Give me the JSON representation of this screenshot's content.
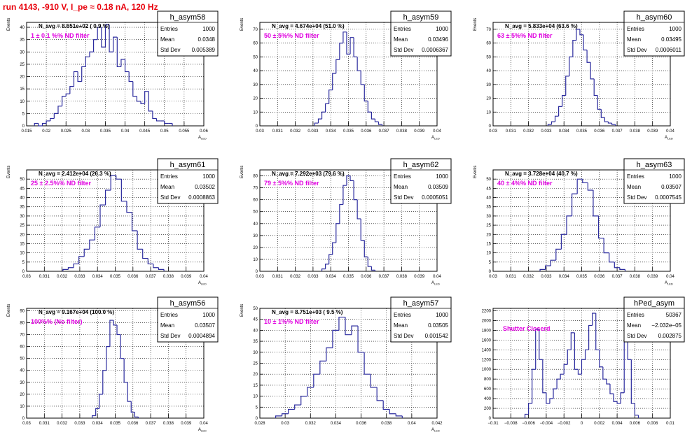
{
  "page_title": "run 4143,  -910 V, I_pe ≈ 0.18 nA, 120 Hz",
  "stats_labels": {
    "entries": "Entries",
    "mean": "Mean",
    "std": "Std Dev"
  },
  "colors": {
    "hist": "#2b2b9e",
    "annotation": "#e000e0",
    "title": "#e8000b"
  },
  "chart_data": [
    {
      "type": "histogram",
      "name": "h_asym58",
      "xlabel": "A_LED",
      "ylabel": "Events",
      "nav": "N_avg = 8.651e+02 ( 0.9 %)",
      "filter": "1 ± 0.1 %% ND filter",
      "entries": "1000",
      "mean": "0.0348",
      "std": "0.005389",
      "xlim": [
        0.015,
        0.06
      ],
      "ylim": [
        0,
        42
      ],
      "xticks": [
        "0.015",
        "0.02",
        "0.025",
        "0.03",
        "0.035",
        "0.04",
        "0.045",
        "0.05",
        "0.055",
        "0.06"
      ],
      "yticks": [
        0,
        5,
        10,
        15,
        20,
        25,
        30,
        35,
        40
      ],
      "x": [
        0.0175,
        0.0185,
        0.0195,
        0.0205,
        0.0215,
        0.0225,
        0.0235,
        0.0245,
        0.0255,
        0.0265,
        0.0275,
        0.0285,
        0.0295,
        0.0305,
        0.0315,
        0.0325,
        0.0335,
        0.0345,
        0.0355,
        0.0365,
        0.0375,
        0.0385,
        0.0395,
        0.0405,
        0.0415,
        0.0425,
        0.0435,
        0.0445,
        0.0455,
        0.0465,
        0.0475,
        0.0485,
        0.0495,
        0.0505,
        0.0515
      ],
      "values": [
        1,
        0,
        1,
        2,
        3,
        5,
        8,
        12,
        13,
        16,
        22,
        18,
        24,
        28,
        30,
        35,
        40,
        32,
        41,
        30,
        36,
        24,
        27,
        22,
        18,
        12,
        10,
        9,
        14,
        6,
        3,
        2,
        2,
        1,
        1
      ]
    },
    {
      "type": "histogram",
      "name": "h_asym59",
      "xlabel": "A_LED",
      "ylabel": "Events",
      "nav": "N_avg = 4.674e+04 (51.0 %)",
      "filter": "50 ± 5%% ND filter",
      "entries": "1000",
      "mean": "0.03496",
      "std": "0.0006367",
      "xlim": [
        0.03,
        0.04
      ],
      "ylim": [
        0,
        75
      ],
      "xticks": [
        "0.03",
        "0.031",
        "0.032",
        "0.033",
        "0.034",
        "0.035",
        "0.036",
        "0.037",
        "0.038",
        "0.039",
        "0.04"
      ],
      "yticks": [
        0,
        10,
        20,
        30,
        40,
        50,
        60,
        70
      ],
      "x": [
        0.0332,
        0.0334,
        0.0336,
        0.0338,
        0.034,
        0.0342,
        0.0344,
        0.0346,
        0.0348,
        0.035,
        0.0352,
        0.0354,
        0.0356,
        0.0358,
        0.036,
        0.0362,
        0.0364,
        0.0366,
        0.0368
      ],
      "values": [
        2,
        5,
        10,
        16,
        26,
        38,
        48,
        60,
        68,
        52,
        64,
        50,
        40,
        30,
        18,
        10,
        5,
        3,
        1
      ]
    },
    {
      "type": "histogram",
      "name": "h_asym60",
      "xlabel": "A_LED",
      "ylabel": "Events",
      "nav": "N_avg = 5.833e+04 (63.6 %)",
      "filter": "63 ± 5%% ND filter",
      "entries": "1000",
      "mean": "0.03495",
      "std": "0.0006011",
      "xlim": [
        0.03,
        0.04
      ],
      "ylim": [
        0,
        75
      ],
      "xticks": [
        "0.03",
        "0.031",
        "0.032",
        "0.033",
        "0.034",
        "0.035",
        "0.036",
        "0.037",
        "0.038",
        "0.039",
        "0.04"
      ],
      "yticks": [
        0,
        10,
        20,
        30,
        40,
        50,
        60,
        70
      ],
      "x": [
        0.0332,
        0.0334,
        0.0336,
        0.0338,
        0.034,
        0.0342,
        0.0344,
        0.0346,
        0.0348,
        0.035,
        0.0352,
        0.0354,
        0.0356,
        0.0358,
        0.036,
        0.0362,
        0.0364,
        0.0366,
        0.0368
      ],
      "values": [
        1,
        3,
        7,
        14,
        22,
        36,
        50,
        62,
        70,
        66,
        55,
        46,
        34,
        22,
        12,
        6,
        3,
        2,
        1
      ]
    },
    {
      "type": "histogram",
      "name": "h_asym61",
      "xlabel": "A_LED",
      "ylabel": "Events",
      "nav": "N_avg = 2.412e+04 (26.3 %)",
      "filter": "25 ± 2.5%% ND filter",
      "entries": "1000",
      "mean": "0.03502",
      "std": "0.0008863",
      "xlim": [
        0.03,
        0.04
      ],
      "ylim": [
        0,
        55
      ],
      "xticks": [
        "0.03",
        "0.031",
        "0.032",
        "0.033",
        "0.034",
        "0.035",
        "0.036",
        "0.037",
        "0.038",
        "0.039",
        "0.04"
      ],
      "yticks": [
        0,
        5,
        10,
        15,
        20,
        25,
        30,
        35,
        40,
        45,
        50
      ],
      "x": [
        0.0322,
        0.0325,
        0.0328,
        0.0331,
        0.0334,
        0.0337,
        0.034,
        0.0343,
        0.0346,
        0.0349,
        0.0352,
        0.0355,
        0.0358,
        0.0361,
        0.0364,
        0.0367,
        0.037,
        0.0373,
        0.0376
      ],
      "values": [
        1,
        2,
        4,
        8,
        12,
        17,
        24,
        36,
        44,
        52,
        50,
        38,
        32,
        22,
        12,
        7,
        4,
        2,
        1
      ]
    },
    {
      "type": "histogram",
      "name": "h_asym62",
      "xlabel": "A_LED",
      "ylabel": "Events",
      "nav": "N_avg = 7.292e+03 (79.6 %)",
      "filter": "79 ± 5%% ND filter",
      "entries": "1000",
      "mean": "0.03509",
      "std": "0.0005051",
      "xlim": [
        0.03,
        0.04
      ],
      "ylim": [
        0,
        85
      ],
      "xticks": [
        "0.03",
        "0.031",
        "0.032",
        "0.033",
        "0.034",
        "0.035",
        "0.036",
        "0.037",
        "0.038",
        "0.039",
        "0.04"
      ],
      "yticks": [
        0,
        10,
        20,
        30,
        40,
        50,
        60,
        70,
        80
      ],
      "x": [
        0.0336,
        0.0338,
        0.034,
        0.0342,
        0.0344,
        0.0346,
        0.0348,
        0.035,
        0.0352,
        0.0354,
        0.0356,
        0.0358,
        0.036,
        0.0362,
        0.0364
      ],
      "values": [
        2,
        6,
        14,
        24,
        40,
        56,
        72,
        80,
        76,
        60,
        44,
        26,
        12,
        4,
        1
      ]
    },
    {
      "type": "histogram",
      "name": "h_asym63",
      "xlabel": "A_LED",
      "ylabel": "Events",
      "nav": "N_avg = 3.728e+04 (40.7 %)",
      "filter": "40 ± 4%% ND filter",
      "entries": "1000",
      "mean": "0.03507",
      "std": "0.0007545",
      "xlim": [
        0.03,
        0.04
      ],
      "ylim": [
        0,
        55
      ],
      "xticks": [
        "0.03",
        "0.031",
        "0.032",
        "0.033",
        "0.034",
        "0.035",
        "0.036",
        "0.037",
        "0.038",
        "0.039",
        "0.04"
      ],
      "yticks": [
        0,
        5,
        10,
        15,
        20,
        25,
        30,
        35,
        40,
        45,
        50
      ],
      "x": [
        0.0328,
        0.0331,
        0.0334,
        0.0337,
        0.034,
        0.0343,
        0.0346,
        0.0349,
        0.0352,
        0.0355,
        0.0358,
        0.0361,
        0.0364,
        0.0367,
        0.037,
        0.0373
      ],
      "values": [
        1,
        3,
        6,
        12,
        20,
        30,
        42,
        50,
        48,
        44,
        30,
        18,
        10,
        5,
        2,
        1
      ]
    },
    {
      "type": "histogram",
      "name": "h_asym56",
      "xlabel": "A_LED",
      "ylabel": "Events",
      "nav": "N_avg = 9.167e+04 (100.0 %)",
      "filter": "100%% (No filter)",
      "entries": "1000",
      "mean": "0.03507",
      "std": "0.0004894",
      "xlim": [
        0.03,
        0.04
      ],
      "ylim": [
        0,
        92
      ],
      "xticks": [
        "0.03",
        "0.031",
        "0.032",
        "0.033",
        "0.034",
        "0.035",
        "0.036",
        "0.037",
        "0.038",
        "0.039",
        "0.04"
      ],
      "yticks": [
        0,
        10,
        20,
        30,
        40,
        50,
        60,
        70,
        80,
        90
      ],
      "x": [
        0.0338,
        0.034,
        0.0342,
        0.0344,
        0.0346,
        0.0348,
        0.035,
        0.0352,
        0.0354,
        0.0356,
        0.0358,
        0.036,
        0.0362
      ],
      "values": [
        2,
        8,
        20,
        40,
        60,
        82,
        78,
        70,
        50,
        30,
        14,
        5,
        1
      ]
    },
    {
      "type": "histogram",
      "name": "h_asym57",
      "xlabel": "A_LED",
      "ylabel": "Events",
      "nav": "N_avg = 8.751e+03 ( 9.5 %)",
      "filter": "10 ± 1%% ND filter",
      "entries": "1000",
      "mean": "0.03505",
      "std": "0.001542",
      "xlim": [
        0.028,
        0.042
      ],
      "ylim": [
        0,
        50
      ],
      "xticks": [
        "0.028",
        "0.03",
        "0.032",
        "0.034",
        "0.036",
        "0.038",
        "0.04",
        "0.042"
      ],
      "yticks": [
        0,
        5,
        10,
        15,
        20,
        25,
        30,
        35,
        40,
        45,
        50
      ],
      "x": [
        0.0295,
        0.03,
        0.0305,
        0.031,
        0.0315,
        0.032,
        0.0325,
        0.033,
        0.0335,
        0.034,
        0.0345,
        0.035,
        0.0355,
        0.036,
        0.0365,
        0.037,
        0.0375,
        0.038,
        0.0385,
        0.039
      ],
      "values": [
        1,
        2,
        4,
        6,
        10,
        14,
        20,
        26,
        32,
        40,
        46,
        38,
        42,
        30,
        20,
        14,
        8,
        4,
        2,
        1
      ]
    },
    {
      "type": "histogram",
      "name": "hPed_asym",
      "xlabel": "",
      "ylabel": "",
      "nav": "",
      "filter": "Shutter Closerd",
      "entries": "50367",
      "mean": "−2.032e−05",
      "std": "0.002875",
      "xlim": [
        -0.01,
        0.01
      ],
      "ylim": [
        0,
        2250
      ],
      "xticks": [
        "−0.01",
        "−0.008",
        "−0.006",
        "−0.004",
        "−0.002",
        "0",
        "0.002",
        "0.004",
        "0.006",
        "0.008",
        "0.01"
      ],
      "yticks": [
        0,
        200,
        400,
        600,
        800,
        1000,
        1200,
        1400,
        1600,
        1800,
        2000,
        2200
      ],
      "x": [
        -0.0062,
        -0.0058,
        -0.0054,
        -0.005,
        -0.0046,
        -0.0042,
        -0.0038,
        -0.0034,
        -0.003,
        -0.0026,
        -0.0022,
        -0.0018,
        -0.0014,
        -0.001,
        -0.0006,
        -0.0002,
        0.0002,
        0.0006,
        0.001,
        0.0014,
        0.0018,
        0.0022,
        0.0026,
        0.003,
        0.0034,
        0.0038,
        0.0042,
        0.0046,
        0.005,
        0.0054,
        0.0058,
        0.0062
      ],
      "values": [
        80,
        300,
        1000,
        1820,
        1200,
        520,
        300,
        400,
        600,
        800,
        900,
        1100,
        1400,
        1750,
        1000,
        900,
        1200,
        1400,
        1900,
        2150,
        1400,
        1050,
        800,
        700,
        500,
        340,
        300,
        520,
        1780,
        1200,
        300,
        60
      ]
    }
  ]
}
